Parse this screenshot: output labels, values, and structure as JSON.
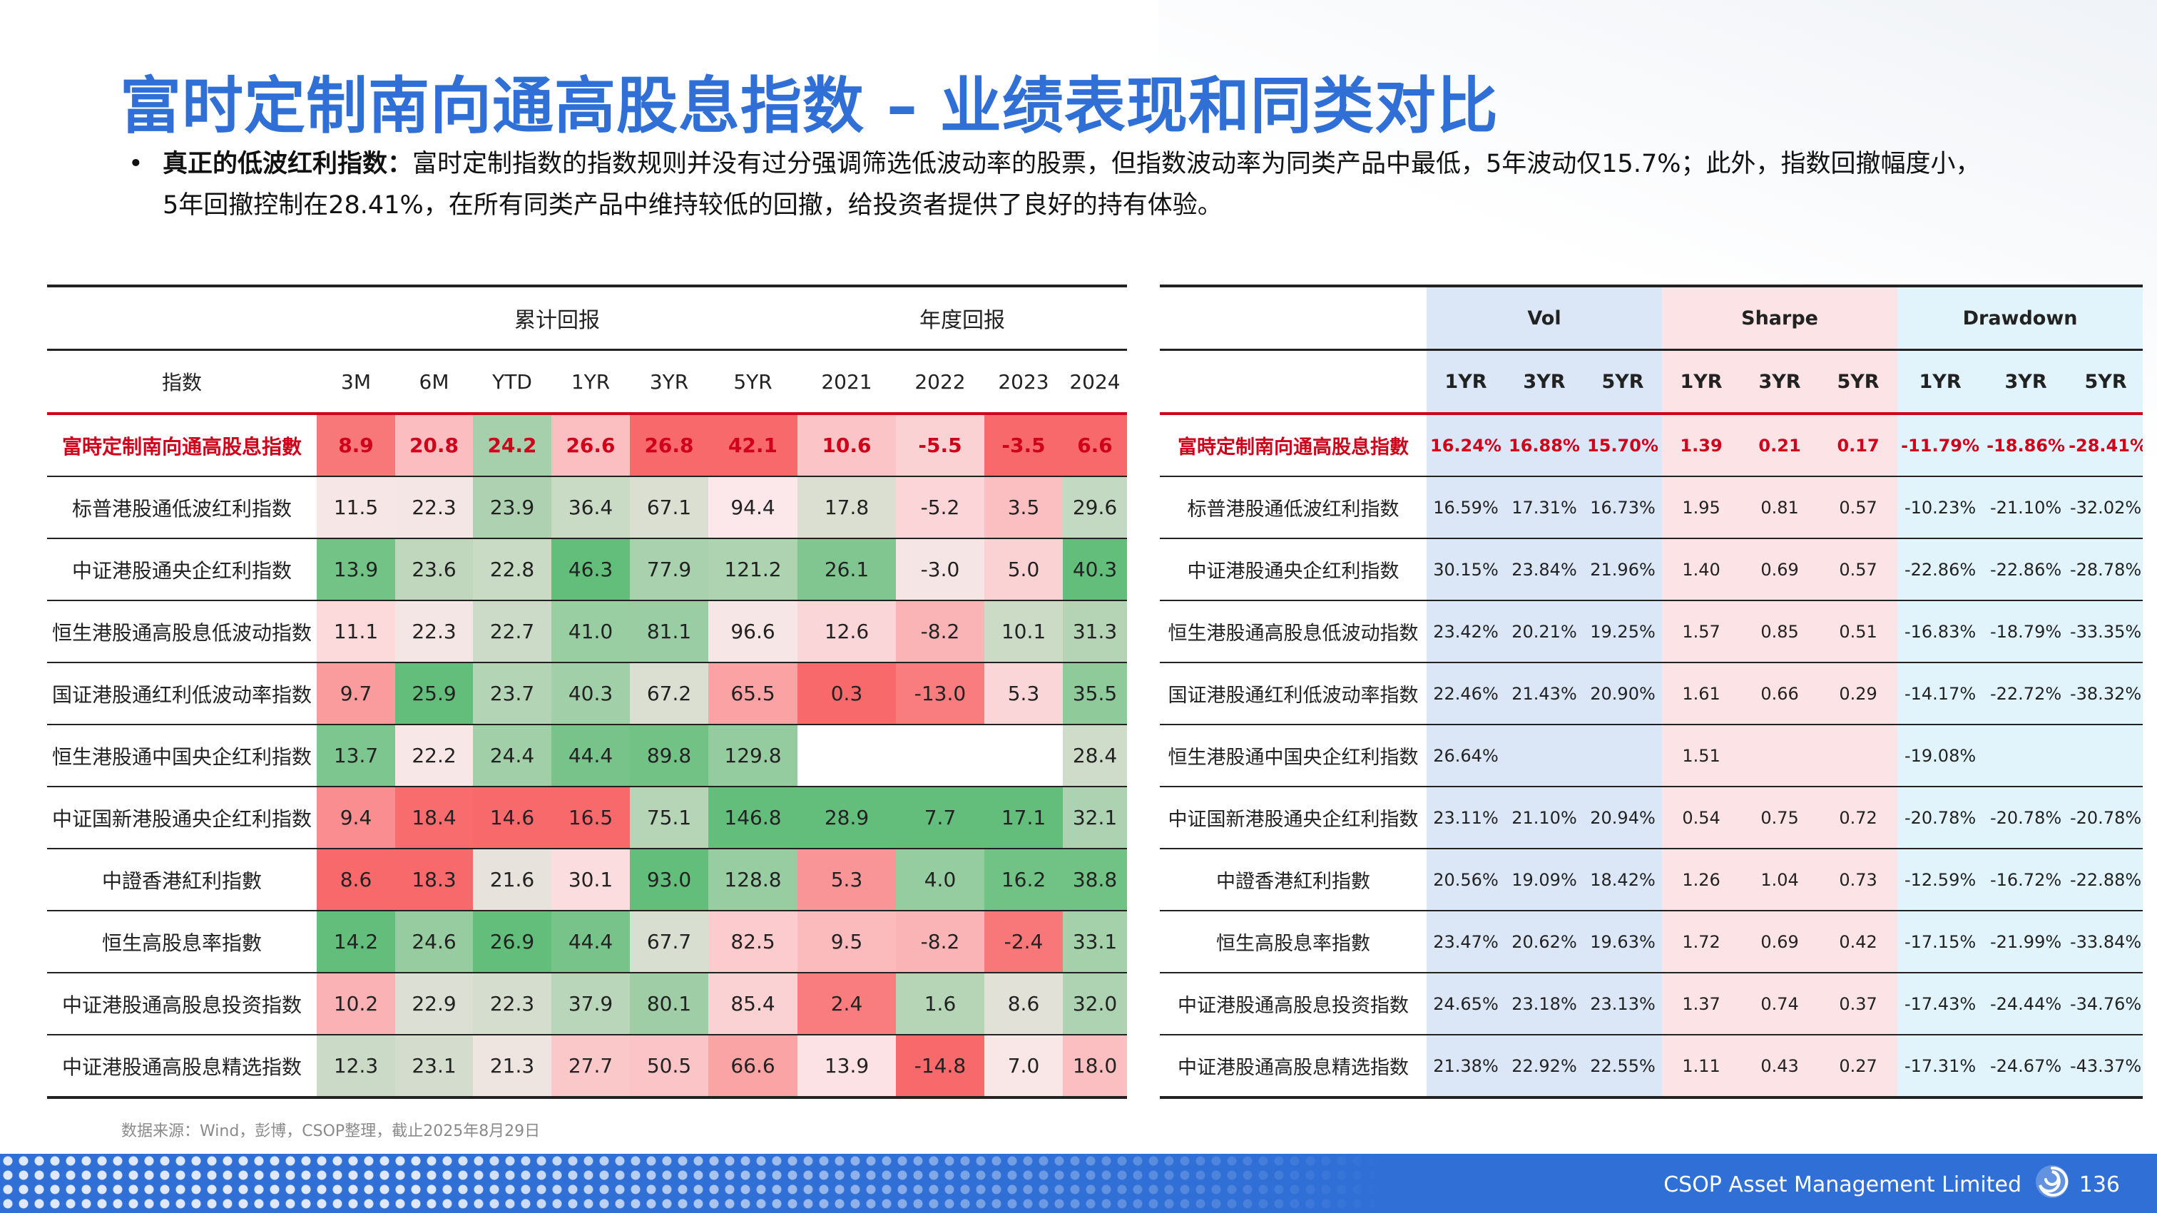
{
  "title": "富时定制南向通高股息指数 – 业绩表现和同类对比",
  "bullet": {
    "lead": "真正的低波红利指数：",
    "line1": "富时定制指数的指数规则并没有过分强调筛选低波动率的股票，但指数波动率为同类产品中最低，5年波动仅15.7%；此外，指数回撤幅度小，",
    "line2": "5年回撤控制在28.41%，在所有同类产品中维持较低的回撤，给投资者提供了良好的持有体验。"
  },
  "left_table": {
    "group_headers": {
      "cumulative": "累计回报",
      "annual": "年度回报"
    },
    "columns": [
      "指数",
      "3M",
      "6M",
      "YTD",
      "1YR",
      "3YR",
      "5YR",
      "2021",
      "2022",
      "2023",
      "2024"
    ],
    "rows": [
      {
        "name": "富時定制南向通高股息指數",
        "values": [
          "8.9",
          "20.8",
          "24.2",
          "26.6",
          "26.8",
          "42.1",
          "10.6",
          "-5.5",
          "-3.5",
          "6.6"
        ]
      },
      {
        "name": "标普港股通低波红利指数",
        "values": [
          "11.5",
          "22.3",
          "23.9",
          "36.4",
          "67.1",
          "94.4",
          "17.8",
          "-5.2",
          "3.5",
          "29.6"
        ]
      },
      {
        "name": "中证港股通央企红利指数",
        "values": [
          "13.9",
          "23.6",
          "22.8",
          "46.3",
          "77.9",
          "121.2",
          "26.1",
          "-3.0",
          "5.0",
          "40.3"
        ]
      },
      {
        "name": "恒生港股通高股息低波动指数",
        "values": [
          "11.1",
          "22.3",
          "22.7",
          "41.0",
          "81.1",
          "96.6",
          "12.6",
          "-8.2",
          "10.1",
          "31.3"
        ]
      },
      {
        "name": "国证港股通红利低波动率指数",
        "values": [
          "9.7",
          "25.9",
          "23.7",
          "40.3",
          "67.2",
          "65.5",
          "0.3",
          "-13.0",
          "5.3",
          "35.5"
        ]
      },
      {
        "name": "恒生港股通中国央企红利指数",
        "values": [
          "13.7",
          "22.2",
          "24.4",
          "44.4",
          "89.8",
          "129.8",
          "",
          "",
          "",
          "28.4"
        ]
      },
      {
        "name": "中证国新港股通央企红利指数",
        "values": [
          "9.4",
          "18.4",
          "14.6",
          "16.5",
          "75.1",
          "146.8",
          "28.9",
          "7.7",
          "17.1",
          "32.1"
        ]
      },
      {
        "name": "中證香港紅利指數",
        "values": [
          "8.6",
          "18.3",
          "21.6",
          "30.1",
          "93.0",
          "128.8",
          "5.3",
          "4.0",
          "16.2",
          "38.8"
        ]
      },
      {
        "name": "恒生高股息率指數",
        "values": [
          "14.2",
          "24.6",
          "26.9",
          "44.4",
          "67.7",
          "82.5",
          "9.5",
          "-8.2",
          "-2.4",
          "33.1"
        ]
      },
      {
        "name": "中证港股通高股息投资指数",
        "values": [
          "10.2",
          "22.9",
          "22.3",
          "37.9",
          "80.1",
          "85.4",
          "2.4",
          "1.6",
          "8.6",
          "32.0"
        ]
      },
      {
        "name": "中证港股通高股息精选指数",
        "values": [
          "12.3",
          "23.1",
          "21.3",
          "27.7",
          "50.5",
          "66.6",
          "13.9",
          "-14.8",
          "7.0",
          "18.0"
        ]
      }
    ]
  },
  "right_table": {
    "group_headers": {
      "vol": "Vol",
      "sharpe": "Sharpe",
      "drawdown": "Drawdown"
    },
    "columns": [
      "1YR",
      "3YR",
      "5YR",
      "1YR",
      "3YR",
      "5YR",
      "1YR",
      "3YR",
      "5YR"
    ],
    "rows": [
      {
        "name": "富時定制南向通高股息指數",
        "values": [
          "16.24%",
          "16.88%",
          "15.70%",
          "1.39",
          "0.21",
          "0.17",
          "-11.79%",
          "-18.86%",
          "-28.41%"
        ]
      },
      {
        "name": "标普港股通低波红利指数",
        "values": [
          "16.59%",
          "17.31%",
          "16.73%",
          "1.95",
          "0.81",
          "0.57",
          "-10.23%",
          "-21.10%",
          "-32.02%"
        ]
      },
      {
        "name": "中证港股通央企红利指数",
        "values": [
          "30.15%",
          "23.84%",
          "21.96%",
          "1.40",
          "0.69",
          "0.57",
          "-22.86%",
          "-22.86%",
          "-28.78%"
        ]
      },
      {
        "name": "恒生港股通高股息低波动指数",
        "values": [
          "23.42%",
          "20.21%",
          "19.25%",
          "1.57",
          "0.85",
          "0.51",
          "-16.83%",
          "-18.79%",
          "-33.35%"
        ]
      },
      {
        "name": "国证港股通红利低波动率指数",
        "values": [
          "22.46%",
          "21.43%",
          "20.90%",
          "1.61",
          "0.66",
          "0.29",
          "-14.17%",
          "-22.72%",
          "-38.32%"
        ]
      },
      {
        "name": "恒生港股通中国央企红利指数",
        "values": [
          "26.64%",
          "",
          "",
          "1.51",
          "",
          "",
          "-19.08%",
          "",
          ""
        ]
      },
      {
        "name": "中证国新港股通央企红利指数",
        "values": [
          "23.11%",
          "21.10%",
          "20.94%",
          "0.54",
          "0.75",
          "0.72",
          "-20.78%",
          "-20.78%",
          "-20.78%"
        ]
      },
      {
        "name": "中證香港紅利指數",
        "values": [
          "20.56%",
          "19.09%",
          "18.42%",
          "1.26",
          "1.04",
          "0.73",
          "-12.59%",
          "-16.72%",
          "-22.88%"
        ]
      },
      {
        "name": "恒生高股息率指數",
        "values": [
          "23.47%",
          "20.62%",
          "19.63%",
          "1.72",
          "0.69",
          "0.42",
          "-17.15%",
          "-21.99%",
          "-33.84%"
        ]
      },
      {
        "name": "中证港股通高股息投资指数",
        "values": [
          "24.65%",
          "23.18%",
          "23.13%",
          "1.37",
          "0.74",
          "0.37",
          "-17.43%",
          "-24.44%",
          "-34.76%"
        ]
      },
      {
        "name": "中证港股通高股息精选指数",
        "values": [
          "21.38%",
          "22.92%",
          "22.55%",
          "1.11",
          "0.43",
          "0.27",
          "-17.31%",
          "-24.67%",
          "-43.37%"
        ]
      }
    ]
  },
  "colors": {
    "title": "#2f6fd6",
    "featured": "#d0021b",
    "vol_bg": "#dbe6f6",
    "sharpe_bg": "#fbe3e6",
    "drawdown_bg": "#e2f4fb",
    "footer_bar": "#2f6fd6",
    "heat_positive": "#63be7b",
    "heat_negative": "#f8696b"
  },
  "footer": {
    "source": "数据来源：Wind，彭博，CSOP整理，截止2025年8月29日",
    "company": "CSOP Asset Management Limited",
    "page": "136"
  },
  "icons": {
    "logo": "swirl-logo-icon",
    "bullet": "bullet-dot-icon"
  }
}
